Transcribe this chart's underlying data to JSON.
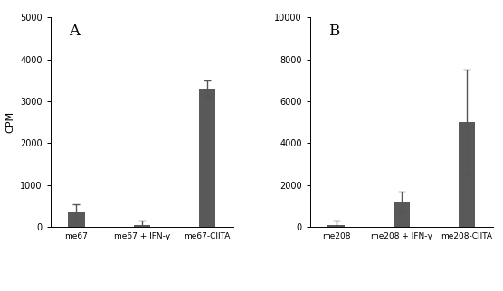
{
  "panel_A": {
    "labels": [
      "me67",
      "me67 + IFN-γ",
      "me67-CIITA"
    ],
    "values": [
      350,
      50,
      3300
    ],
    "errors": [
      200,
      100,
      200
    ],
    "ylim": [
      0,
      5000
    ],
    "yticks": [
      0,
      1000,
      2000,
      3000,
      4000,
      5000
    ],
    "panel_label": "A"
  },
  "panel_B": {
    "labels": [
      "me208",
      "me208 + IFN-γ",
      "me208-CIITA"
    ],
    "values": [
      100,
      1200,
      5000
    ],
    "errors": [
      200,
      500,
      2500
    ],
    "ylim": [
      0,
      10000
    ],
    "yticks": [
      0,
      2000,
      4000,
      6000,
      8000,
      10000
    ],
    "panel_label": "B"
  },
  "bar_color": "#595959",
  "bar_width": 0.38,
  "ylabel": "CPM",
  "ylabel_fontsize": 8,
  "tick_fontsize": 7,
  "label_fontsize": 6.5,
  "panel_label_fontsize": 12,
  "background_color": "#ffffff",
  "error_capsize": 3,
  "error_linewidth": 1.0,
  "error_color": "#555555"
}
